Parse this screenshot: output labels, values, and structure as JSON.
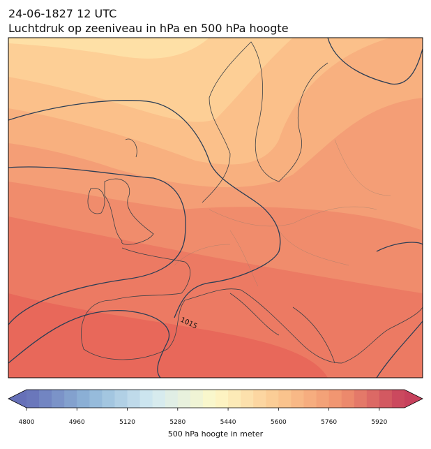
{
  "title": {
    "line1": "24-06-1827 12 UTC",
    "line2": "Luchtdruk op zeeniveau in hPa en 500 hPa hoogte"
  },
  "map": {
    "contour_label": "1015"
  },
  "colorbar": {
    "label": "500 hPa hoogte in meter",
    "range": [
      4800,
      6000
    ],
    "step": 40,
    "ticks": [
      4800,
      4960,
      5120,
      5280,
      5440,
      5600,
      5760,
      5920
    ],
    "colors": [
      "#6670b8",
      "#8fb6d8",
      "#d3eaf2",
      "#fdf8c8",
      "#fbc890",
      "#f0916e",
      "#c7415c"
    ]
  }
}
